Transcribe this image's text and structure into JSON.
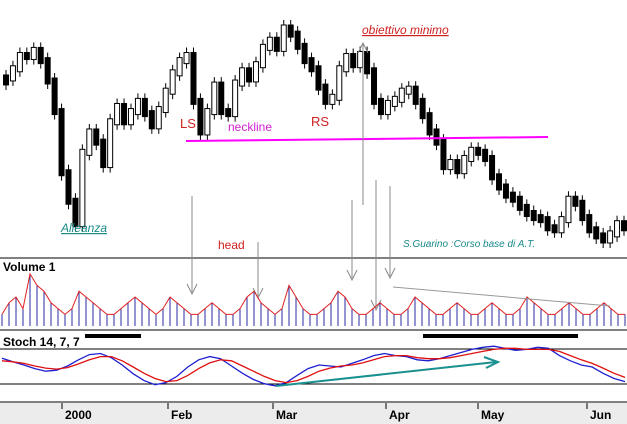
{
  "chart_data": [
    {
      "type": "candlestick",
      "title": "",
      "instrument": "Alleanza",
      "x_tick_labels": [
        "2000",
        "Feb",
        "Mar",
        "Apr",
        "May",
        "Jun"
      ],
      "annotations": {
        "left_shoulder": "LS",
        "neckline": "neckline",
        "right_shoulder": "RS",
        "head": "head",
        "target": "obiettivo minimo",
        "credit": "S.Guarino :Corso base di A.T."
      },
      "series": [
        {
          "period": 0,
          "close": 183
        },
        {
          "period": 2,
          "close": 192
        },
        {
          "period": 4,
          "close": 205
        },
        {
          "period": 6,
          "close": 204
        },
        {
          "period": 8,
          "close": 210
        },
        {
          "period": 10,
          "close": 200
        },
        {
          "period": 12,
          "close": 180
        },
        {
          "period": 14,
          "close": 150
        },
        {
          "period": 16,
          "close": 90
        },
        {
          "period": 18,
          "close": 62
        },
        {
          "period": 20,
          "close": 40
        },
        {
          "period": 22,
          "close": 110
        },
        {
          "period": 24,
          "close": 130
        },
        {
          "period": 26,
          "close": 120
        },
        {
          "period": 28,
          "close": 98
        },
        {
          "period": 30,
          "close": 140
        },
        {
          "period": 32,
          "close": 155
        },
        {
          "period": 34,
          "close": 140
        },
        {
          "period": 36,
          "close": 150
        },
        {
          "period": 38,
          "close": 160
        },
        {
          "period": 40,
          "close": 148
        },
        {
          "period": 42,
          "close": 136
        },
        {
          "period": 44,
          "close": 152
        },
        {
          "period": 46,
          "close": 170
        },
        {
          "period": 48,
          "close": 188
        },
        {
          "period": 50,
          "close": 200
        },
        {
          "period": 52,
          "close": 205
        },
        {
          "period": 54,
          "close": 160
        },
        {
          "period": 56,
          "close": 130
        },
        {
          "period": 58,
          "close": 150
        },
        {
          "period": 60,
          "close": 176
        },
        {
          "period": 62,
          "close": 150
        },
        {
          "period": 64,
          "close": 148
        },
        {
          "period": 66,
          "close": 178
        },
        {
          "period": 68,
          "close": 190
        },
        {
          "period": 70,
          "close": 182
        },
        {
          "period": 72,
          "close": 196
        },
        {
          "period": 74,
          "close": 213
        },
        {
          "period": 76,
          "close": 220
        },
        {
          "period": 78,
          "close": 212
        },
        {
          "period": 80,
          "close": 232
        },
        {
          "period": 82,
          "close": 226
        },
        {
          "period": 84,
          "close": 214
        },
        {
          "period": 86,
          "close": 200
        },
        {
          "period": 88,
          "close": 192
        },
        {
          "period": 90,
          "close": 174
        },
        {
          "period": 92,
          "close": 160
        },
        {
          "period": 94,
          "close": 164
        },
        {
          "period": 96,
          "close": 192
        },
        {
          "period": 98,
          "close": 204
        },
        {
          "period": 100,
          "close": 196
        },
        {
          "period": 102,
          "close": 206
        },
        {
          "period": 104,
          "close": 190
        },
        {
          "period": 106,
          "close": 160
        },
        {
          "period": 108,
          "close": 150
        },
        {
          "period": 110,
          "close": 158
        },
        {
          "period": 112,
          "close": 162
        },
        {
          "period": 114,
          "close": 170
        },
        {
          "period": 116,
          "close": 172
        },
        {
          "period": 118,
          "close": 160
        },
        {
          "period": 120,
          "close": 146
        },
        {
          "period": 122,
          "close": 130
        },
        {
          "period": 124,
          "close": 120
        },
        {
          "period": 126,
          "close": 96
        },
        {
          "period": 128,
          "close": 100
        },
        {
          "period": 130,
          "close": 92
        },
        {
          "period": 132,
          "close": 104
        },
        {
          "period": 134,
          "close": 112
        },
        {
          "period": 136,
          "close": 110
        },
        {
          "period": 138,
          "close": 104
        },
        {
          "period": 140,
          "close": 86
        },
        {
          "period": 142,
          "close": 76
        },
        {
          "period": 144,
          "close": 68
        },
        {
          "period": 146,
          "close": 64
        },
        {
          "period": 148,
          "close": 56
        },
        {
          "period": 150,
          "close": 50
        },
        {
          "period": 152,
          "close": 46
        },
        {
          "period": 154,
          "close": 44
        },
        {
          "period": 156,
          "close": 36
        },
        {
          "period": 158,
          "close": 34
        },
        {
          "period": 160,
          "close": 44
        },
        {
          "period": 162,
          "close": 64
        },
        {
          "period": 164,
          "close": 60
        },
        {
          "period": 166,
          "close": 46
        },
        {
          "period": 168,
          "close": 34
        },
        {
          "period": 170,
          "close": 28
        },
        {
          "period": 172,
          "close": 24
        },
        {
          "period": 174,
          "close": 30
        },
        {
          "period": 176,
          "close": 40
        },
        {
          "period": 178,
          "close": 36
        }
      ]
    },
    {
      "type": "bar",
      "title": "Volume 1",
      "values": [
        2,
        4,
        5,
        3,
        9,
        7,
        6,
        4,
        3,
        2,
        3,
        6,
        5,
        4,
        3,
        2,
        2,
        3,
        4,
        5,
        4,
        3,
        2,
        3,
        5,
        4,
        3,
        2,
        2,
        3,
        4,
        3,
        2,
        2,
        3,
        5,
        6,
        4,
        3,
        2,
        3,
        7,
        5,
        3,
        2,
        2,
        3,
        4,
        6,
        5,
        3,
        2,
        2,
        3,
        4,
        3,
        2,
        2,
        3,
        5,
        4,
        3,
        2,
        2,
        3,
        4,
        3,
        2,
        2,
        3,
        4,
        3,
        2,
        2,
        3,
        5,
        4,
        3,
        2,
        2,
        3,
        4,
        3,
        2,
        2,
        3,
        4,
        3,
        2,
        2
      ]
    },
    {
      "type": "line",
      "title": "Stoch 14, 7, 7",
      "series": [
        {
          "color": "#1f1fd0",
          "values": [
            65,
            58,
            52,
            45,
            40,
            42,
            50,
            62,
            72,
            74,
            66,
            52,
            35,
            22,
            14,
            18,
            30,
            48,
            62,
            68,
            64,
            50,
            36,
            24,
            16,
            12,
            18,
            32,
            45,
            52,
            50,
            48,
            55,
            62,
            70,
            74,
            70,
            68,
            62,
            60,
            64,
            70,
            76,
            82,
            86,
            88,
            84,
            80,
            82,
            86,
            84,
            70,
            60,
            52,
            48,
            36,
            26,
            20
          ]
        },
        {
          "color": "#e01010",
          "values": [
            60,
            58,
            55,
            50,
            46,
            44,
            47,
            54,
            62,
            68,
            68,
            60,
            48,
            36,
            26,
            20,
            22,
            32,
            45,
            56,
            62,
            60,
            50,
            40,
            30,
            22,
            18,
            22,
            30,
            40,
            46,
            50,
            52,
            56,
            62,
            68,
            70,
            70,
            66,
            64,
            64,
            66,
            70,
            74,
            78,
            82,
            84,
            84,
            82,
            82,
            82,
            78,
            70,
            62,
            55,
            46,
            36,
            28
          ]
        }
      ]
    }
  ]
}
